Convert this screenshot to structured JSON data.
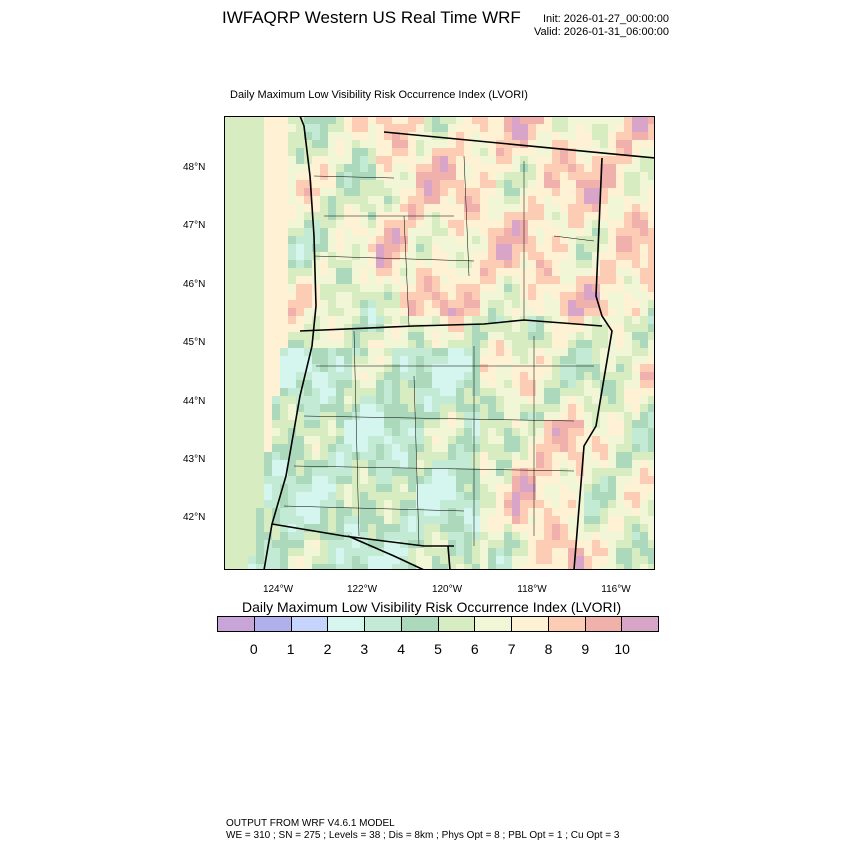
{
  "header": {
    "title": "IWFAQRP Western US Real Time WRF",
    "init": "Init: 2026-01-27_00:00:00",
    "valid": "Valid: 2026-01-31_06:00:00"
  },
  "map": {
    "subtitle": "Daily Maximum Low Visibility Risk Occurrence Index   (LVORI)",
    "lat_labels": [
      "48°N",
      "47°N",
      "46°N",
      "45°N",
      "44°N",
      "43°N",
      "42°N"
    ],
    "lon_labels": [
      "124°W",
      "122°W",
      "120°W",
      "118°W",
      "116°W"
    ]
  },
  "colorbar": {
    "title": "Daily Maximum Low Visibility Risk Occurrence Index  (LVORI)",
    "labels": [
      "0",
      "1",
      "2",
      "3",
      "4",
      "5",
      "6",
      "7",
      "8",
      "9",
      "10"
    ],
    "colors": [
      "#c8a4d8",
      "#b0b0ec",
      "#c4d4fa",
      "#d4f6ee",
      "#c2ead4",
      "#acd8bc",
      "#d8ecc2",
      "#f0f6d6",
      "#fff2d4",
      "#fcccb4",
      "#f0b0ac",
      "#d8a4c8"
    ]
  },
  "footer": {
    "line1": "OUTPUT FROM WRF V4.6.1 MODEL",
    "line2": "WE = 310 ; SN = 275 ; Levels = 38 ; Dis = 8km ; Phys Opt = 8 ; PBL Opt = 1 ; Cu Opt = 3"
  }
}
